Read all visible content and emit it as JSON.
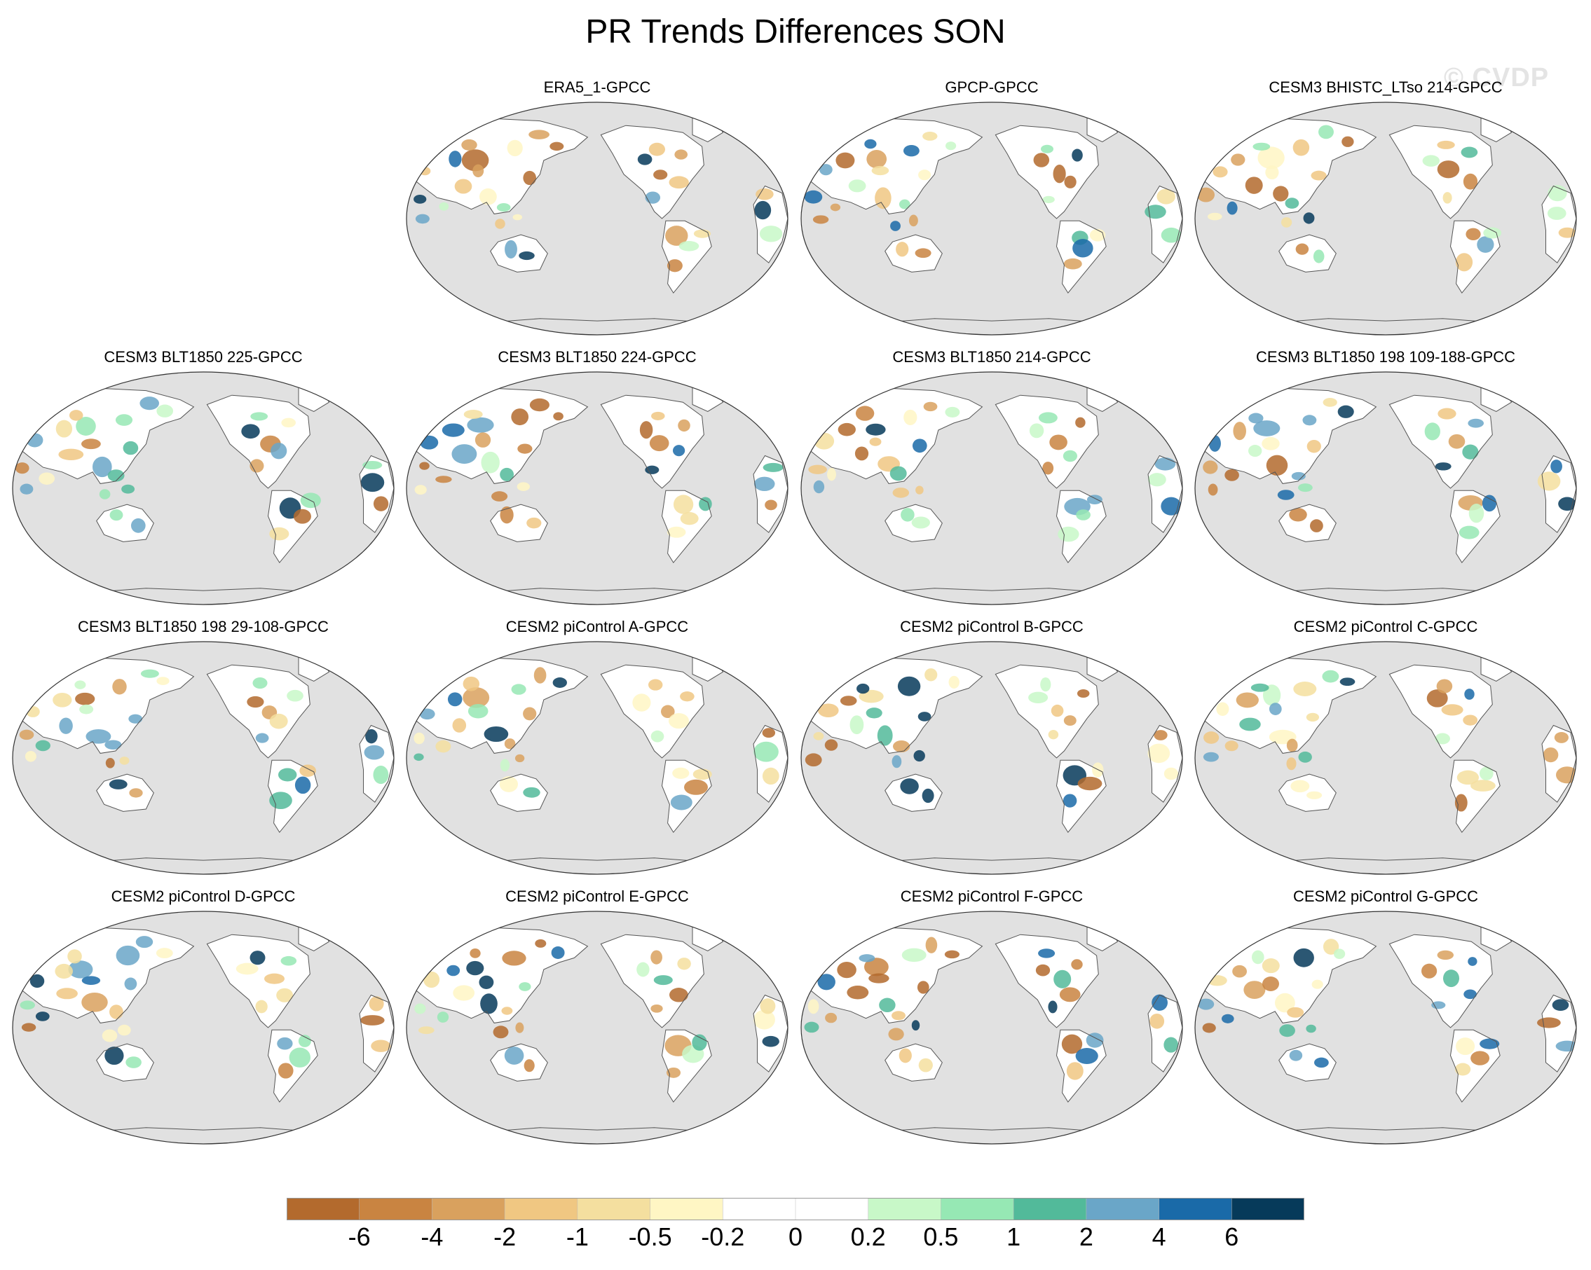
{
  "title": "PR Trends Differences SON",
  "watermark": "© CVDP",
  "panels": [
    {
      "title": "ERA5_1-GPCC",
      "row": 0,
      "col": 1
    },
    {
      "title": "GPCP-GPCC",
      "row": 0,
      "col": 2
    },
    {
      "title": "CESM3 BHISTC_LTso 214-GPCC",
      "row": 0,
      "col": 3
    },
    {
      "title": "CESM3 BLT1850 225-GPCC",
      "row": 1,
      "col": 0
    },
    {
      "title": "CESM3 BLT1850 224-GPCC",
      "row": 1,
      "col": 1
    },
    {
      "title": "CESM3 BLT1850 214-GPCC",
      "row": 1,
      "col": 2
    },
    {
      "title": "CESM3 BLT1850 198 109-188-GPCC",
      "row": 1,
      "col": 3
    },
    {
      "title": "CESM3 BLT1850 198 29-108-GPCC",
      "row": 2,
      "col": 0
    },
    {
      "title": "CESM2 piControl A-GPCC",
      "row": 2,
      "col": 1
    },
    {
      "title": "CESM2 piControl B-GPCC",
      "row": 2,
      "col": 2
    },
    {
      "title": "CESM2 piControl C-GPCC",
      "row": 2,
      "col": 3
    },
    {
      "title": "CESM2 piControl D-GPCC",
      "row": 3,
      "col": 0
    },
    {
      "title": "CESM2 piControl E-GPCC",
      "row": 3,
      "col": 1
    },
    {
      "title": "CESM2 piControl F-GPCC",
      "row": 3,
      "col": 2
    },
    {
      "title": "CESM2 piControl G-GPCC",
      "row": 3,
      "col": 3
    }
  ],
  "colorbar": {
    "colors": [
      "#b36a2d",
      "#c98441",
      "#d9a15e",
      "#f0c782",
      "#f4df9f",
      "#fff6c4",
      "#ffffff",
      "#ffffff",
      "#c8f8c8",
      "#96e8b4",
      "#52ba9a",
      "#6aa6c8",
      "#1a6aa8",
      "#063a5a"
    ],
    "labels": [
      "-6",
      "-4",
      "-2",
      "-1",
      "-0.5",
      "-0.2",
      "0",
      "0.2",
      "0.5",
      "1",
      "2",
      "4",
      "6"
    ]
  }
}
